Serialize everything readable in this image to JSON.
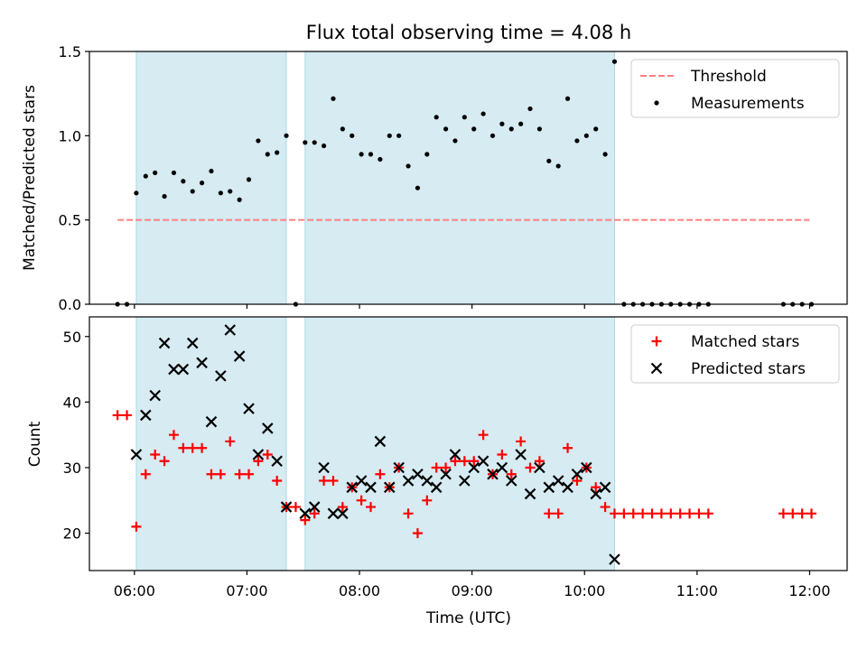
{
  "figure": {
    "title": "Flux total observing time = 4.08 h",
    "xlabel": "Time (UTC)"
  },
  "colors": {
    "shade": "#add8e6",
    "threshold": "#ff7f7f",
    "matched": "#ff0000",
    "measurement": "#000000"
  },
  "chart_data": [
    {
      "type": "scatter",
      "ylabel": "Matched/Predicted stars",
      "xlim": [
        "05:36",
        "12:20"
      ],
      "ylim": [
        0,
        1.5
      ],
      "yticks": [
        0,
        0.5,
        1.0,
        1.5
      ],
      "yticklabels": [
        "0.0",
        "0.5",
        "1.0",
        "1.5"
      ],
      "xticks": [
        "06:00",
        "07:00",
        "08:00",
        "09:00",
        "10:00",
        "11:00",
        "12:00"
      ],
      "legend_position": "upper-right",
      "shaded_intervals": [
        [
          "06:01",
          "07:21"
        ],
        [
          "07:31",
          "10:16"
        ]
      ],
      "series": [
        {
          "name": "Threshold",
          "style": "dashed-line",
          "points": [
            [
              "05:51",
              0.5
            ],
            [
              "12:00",
              0.5
            ]
          ]
        },
        {
          "name": "Measurements",
          "style": "dot",
          "points": [
            [
              "05:51",
              0
            ],
            [
              "05:56",
              0
            ],
            [
              "06:01",
              0.66
            ],
            [
              "06:06",
              0.76
            ],
            [
              "06:11",
              0.78
            ],
            [
              "06:16",
              0.64
            ],
            [
              "06:21",
              0.78
            ],
            [
              "06:26",
              0.73
            ],
            [
              "06:31",
              0.67
            ],
            [
              "06:36",
              0.72
            ],
            [
              "06:41",
              0.79
            ],
            [
              "06:46",
              0.66
            ],
            [
              "06:51",
              0.67
            ],
            [
              "06:56",
              0.62
            ],
            [
              "07:01",
              0.74
            ],
            [
              "07:06",
              0.97
            ],
            [
              "07:11",
              0.89
            ],
            [
              "07:16",
              0.9
            ],
            [
              "07:21",
              1.0
            ],
            [
              "07:26",
              0
            ],
            [
              "07:31",
              0.96
            ],
            [
              "07:36",
              0.96
            ],
            [
              "07:41",
              0.94
            ],
            [
              "07:46",
              1.22
            ],
            [
              "07:51",
              1.04
            ],
            [
              "07:56",
              1.0
            ],
            [
              "08:01",
              0.89
            ],
            [
              "08:06",
              0.89
            ],
            [
              "08:11",
              0.86
            ],
            [
              "08:16",
              1.0
            ],
            [
              "08:21",
              1.0
            ],
            [
              "08:26",
              0.82
            ],
            [
              "08:31",
              0.69
            ],
            [
              "08:36",
              0.89
            ],
            [
              "08:41",
              1.11
            ],
            [
              "08:46",
              1.04
            ],
            [
              "08:51",
              0.97
            ],
            [
              "08:56",
              1.11
            ],
            [
              "09:01",
              1.04
            ],
            [
              "09:06",
              1.13
            ],
            [
              "09:11",
              1.0
            ],
            [
              "09:16",
              1.07
            ],
            [
              "09:21",
              1.04
            ],
            [
              "09:26",
              1.07
            ],
            [
              "09:31",
              1.16
            ],
            [
              "09:36",
              1.04
            ],
            [
              "09:41",
              0.85
            ],
            [
              "09:46",
              0.82
            ],
            [
              "09:51",
              1.22
            ],
            [
              "09:56",
              0.97
            ],
            [
              "10:01",
              1.0
            ],
            [
              "10:06",
              1.04
            ],
            [
              "10:11",
              0.89
            ],
            [
              "10:16",
              1.44
            ],
            [
              "10:21",
              0
            ],
            [
              "10:26",
              0
            ],
            [
              "10:31",
              0
            ],
            [
              "10:36",
              0
            ],
            [
              "10:41",
              0
            ],
            [
              "10:46",
              0
            ],
            [
              "10:51",
              0
            ],
            [
              "10:56",
              0
            ],
            [
              "11:01",
              0
            ],
            [
              "11:06",
              0
            ],
            [
              "11:46",
              0
            ],
            [
              "11:51",
              0
            ],
            [
              "11:56",
              0
            ],
            [
              "12:01",
              0
            ]
          ]
        }
      ]
    },
    {
      "type": "scatter",
      "ylabel": "Count",
      "xlabel": "Time (UTC)",
      "xlim": [
        "05:36",
        "12:20"
      ],
      "ylim": [
        14.3,
        53.0
      ],
      "yticks": [
        20,
        30,
        40,
        50
      ],
      "xticks": [
        "06:00",
        "07:00",
        "08:00",
        "09:00",
        "10:00",
        "11:00",
        "12:00"
      ],
      "legend_position": "upper-right",
      "shaded_intervals": [
        [
          "06:01",
          "07:21"
        ],
        [
          "07:31",
          "10:16"
        ]
      ],
      "series": [
        {
          "name": "Matched stars",
          "marker": "plus",
          "points": [
            [
              "05:51",
              38
            ],
            [
              "05:56",
              38
            ],
            [
              "06:01",
              21
            ],
            [
              "06:06",
              29
            ],
            [
              "06:11",
              32
            ],
            [
              "06:16",
              31
            ],
            [
              "06:21",
              35
            ],
            [
              "06:26",
              33
            ],
            [
              "06:31",
              33
            ],
            [
              "06:36",
              33
            ],
            [
              "06:41",
              29
            ],
            [
              "06:46",
              29
            ],
            [
              "06:51",
              34
            ],
            [
              "06:56",
              29
            ],
            [
              "07:01",
              29
            ],
            [
              "07:06",
              31
            ],
            [
              "07:11",
              32
            ],
            [
              "07:16",
              28
            ],
            [
              "07:21",
              24
            ],
            [
              "07:26",
              24
            ],
            [
              "07:31",
              22
            ],
            [
              "07:36",
              23
            ],
            [
              "07:41",
              28
            ],
            [
              "07:46",
              28
            ],
            [
              "07:51",
              24
            ],
            [
              "07:56",
              27
            ],
            [
              "08:01",
              25
            ],
            [
              "08:06",
              24
            ],
            [
              "08:11",
              29
            ],
            [
              "08:16",
              27
            ],
            [
              "08:21",
              30
            ],
            [
              "08:26",
              23
            ],
            [
              "08:31",
              20
            ],
            [
              "08:36",
              25
            ],
            [
              "08:41",
              30
            ],
            [
              "08:46",
              30
            ],
            [
              "08:51",
              31
            ],
            [
              "08:56",
              31
            ],
            [
              "09:01",
              31
            ],
            [
              "09:06",
              35
            ],
            [
              "09:11",
              29
            ],
            [
              "09:16",
              32
            ],
            [
              "09:21",
              29
            ],
            [
              "09:26",
              34
            ],
            [
              "09:31",
              30
            ],
            [
              "09:36",
              31
            ],
            [
              "09:41",
              23
            ],
            [
              "09:46",
              23
            ],
            [
              "09:51",
              33
            ],
            [
              "09:56",
              28
            ],
            [
              "10:01",
              30
            ],
            [
              "10:06",
              27
            ],
            [
              "10:11",
              24
            ],
            [
              "10:16",
              23
            ],
            [
              "10:21",
              23
            ],
            [
              "10:26",
              23
            ],
            [
              "10:31",
              23
            ],
            [
              "10:36",
              23
            ],
            [
              "10:41",
              23
            ],
            [
              "10:46",
              23
            ],
            [
              "10:51",
              23
            ],
            [
              "10:56",
              23
            ],
            [
              "11:01",
              23
            ],
            [
              "11:06",
              23
            ],
            [
              "11:46",
              23
            ],
            [
              "11:51",
              23
            ],
            [
              "11:56",
              23
            ],
            [
              "12:01",
              23
            ]
          ]
        },
        {
          "name": "Predicted stars",
          "marker": "x",
          "points": [
            [
              "06:01",
              32
            ],
            [
              "06:06",
              38
            ],
            [
              "06:11",
              41
            ],
            [
              "06:16",
              49
            ],
            [
              "06:21",
              45
            ],
            [
              "06:26",
              45
            ],
            [
              "06:31",
              49
            ],
            [
              "06:36",
              46
            ],
            [
              "06:41",
              37
            ],
            [
              "06:46",
              44
            ],
            [
              "06:51",
              51
            ],
            [
              "06:56",
              47
            ],
            [
              "07:01",
              39
            ],
            [
              "07:06",
              32
            ],
            [
              "07:11",
              36
            ],
            [
              "07:16",
              31
            ],
            [
              "07:21",
              24
            ],
            [
              "07:31",
              23
            ],
            [
              "07:36",
              24
            ],
            [
              "07:41",
              30
            ],
            [
              "07:46",
              23
            ],
            [
              "07:51",
              23
            ],
            [
              "07:56",
              27
            ],
            [
              "08:01",
              28
            ],
            [
              "08:06",
              27
            ],
            [
              "08:11",
              34
            ],
            [
              "08:16",
              27
            ],
            [
              "08:21",
              30
            ],
            [
              "08:26",
              28
            ],
            [
              "08:31",
              29
            ],
            [
              "08:36",
              28
            ],
            [
              "08:41",
              27
            ],
            [
              "08:46",
              29
            ],
            [
              "08:51",
              32
            ],
            [
              "08:56",
              28
            ],
            [
              "09:01",
              30
            ],
            [
              "09:06",
              31
            ],
            [
              "09:11",
              29
            ],
            [
              "09:16",
              30
            ],
            [
              "09:21",
              28
            ],
            [
              "09:26",
              32
            ],
            [
              "09:31",
              26
            ],
            [
              "09:36",
              30
            ],
            [
              "09:41",
              27
            ],
            [
              "09:46",
              28
            ],
            [
              "09:51",
              27
            ],
            [
              "09:56",
              29
            ],
            [
              "10:01",
              30
            ],
            [
              "10:06",
              26
            ],
            [
              "10:11",
              27
            ],
            [
              "10:16",
              16
            ]
          ]
        }
      ]
    }
  ]
}
